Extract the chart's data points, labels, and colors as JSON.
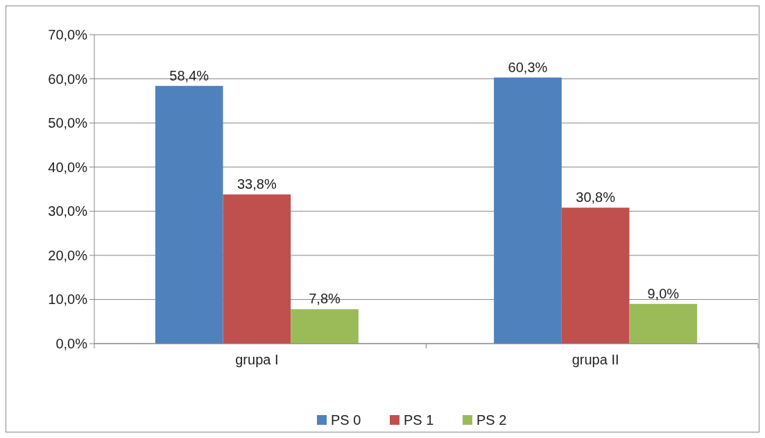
{
  "chart_data": {
    "type": "bar",
    "categories": [
      "grupa I",
      "grupa II"
    ],
    "series": [
      {
        "name": "PS 0",
        "color": "#4f81bd",
        "values": [
          58.4,
          60.3
        ],
        "value_labels": [
          "58,4%",
          "60,3%"
        ]
      },
      {
        "name": "PS 1",
        "color": "#c0504d",
        "values": [
          33.8,
          30.8
        ],
        "value_labels": [
          "33,8%",
          "30,8%"
        ]
      },
      {
        "name": "PS 2",
        "color": "#9bbb59",
        "values": [
          7.8,
          9.0
        ],
        "value_labels": [
          "7,8%",
          "9,0%"
        ]
      }
    ],
    "ylim": [
      0,
      70
    ],
    "yticks": [
      {
        "value": 0,
        "label": "0,0%"
      },
      {
        "value": 10,
        "label": "10,0%"
      },
      {
        "value": 20,
        "label": "20,0%"
      },
      {
        "value": 30,
        "label": "30,0%"
      },
      {
        "value": 40,
        "label": "40,0%"
      },
      {
        "value": 50,
        "label": "50,0%"
      },
      {
        "value": 60,
        "label": "60,0%"
      },
      {
        "value": 70,
        "label": "70,0%"
      }
    ],
    "grid": "y",
    "legend": "bottom"
  }
}
